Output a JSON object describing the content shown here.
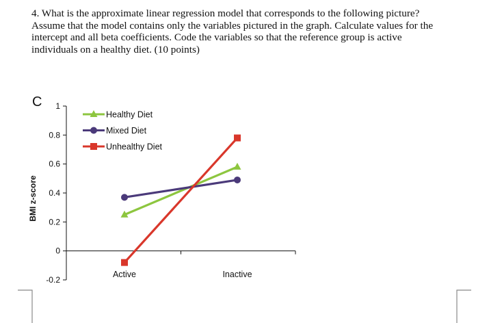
{
  "question": {
    "lines": [
      "4. What is the approximate linear regression model that corresponds to the following picture?",
      "Assume that the model contains only the variables pictured in the graph. Calculate values for the",
      "intercept and all beta coefficients. Code the variables so that the reference group is active",
      "individuals on a healthy diet. (10 points)"
    ]
  },
  "chart_data": {
    "type": "line",
    "panel_label": "C",
    "title": "",
    "xlabel": "",
    "ylabel": "BMI z-score",
    "categories": [
      "Active",
      "Inactive"
    ],
    "ylim": [
      -0.2,
      1
    ],
    "yticks": [
      -0.2,
      0,
      0.2,
      0.4,
      0.6,
      0.8,
      1
    ],
    "ytick_labels": [
      "-0.2",
      "0",
      "0.2",
      "0.4",
      "0.6",
      "0.8",
      "1"
    ],
    "grid": false,
    "legend_position": "top-left",
    "series": [
      {
        "name": "Healthy Diet",
        "values": [
          0.25,
          0.58
        ],
        "color": "#8dc63f",
        "marker": "triangle"
      },
      {
        "name": "Mixed Diet",
        "values": [
          0.37,
          0.49
        ],
        "color": "#4b3a7a",
        "marker": "circle"
      },
      {
        "name": "Unhealthy Diet",
        "values": [
          -0.08,
          0.78
        ],
        "color": "#d9372b",
        "marker": "square"
      }
    ]
  }
}
